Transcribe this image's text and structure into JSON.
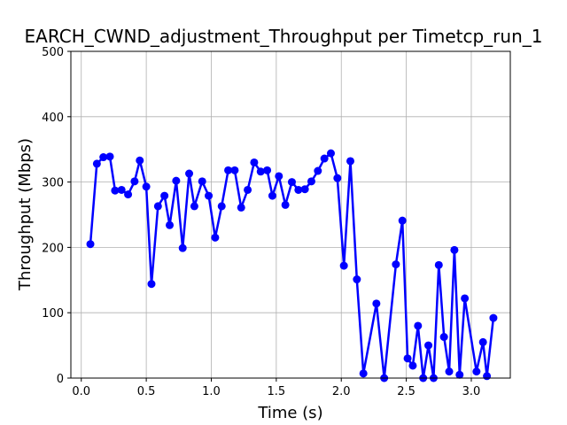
{
  "chart_data": {
    "type": "line",
    "title": "EARCH_CWND_adjustment_Throughput per Timetcp_run_1",
    "xlabel": "Time (s)",
    "ylabel": "Throughput (Mbps)",
    "xlim": [
      -0.08,
      3.3
    ],
    "ylim": [
      0,
      500
    ],
    "xticks": [
      0.0,
      0.5,
      1.0,
      1.5,
      2.0,
      2.5,
      3.0
    ],
    "xtick_labels": [
      "0.0",
      "0.5",
      "1.0",
      "1.5",
      "2.0",
      "2.5",
      "3.0"
    ],
    "yticks": [
      0,
      100,
      200,
      300,
      400,
      500
    ],
    "ytick_labels": [
      "0",
      "100",
      "200",
      "300",
      "400",
      "500"
    ],
    "grid": true,
    "line_color": "#0000ff",
    "series": [
      {
        "x": [
          0.07,
          0.12,
          0.17,
          0.22,
          0.26,
          0.31,
          0.36,
          0.41,
          0.45,
          0.5,
          0.54,
          0.59,
          0.64,
          0.68,
          0.73,
          0.78,
          0.83,
          0.87,
          0.93,
          0.98,
          1.03,
          1.08,
          1.13,
          1.18,
          1.23,
          1.28,
          1.33,
          1.38,
          1.43,
          1.47,
          1.52,
          1.57,
          1.62,
          1.67,
          1.72,
          1.77,
          1.82,
          1.87,
          1.92,
          1.97,
          2.02,
          2.07,
          2.12,
          2.17,
          2.27,
          2.33,
          2.42,
          2.47,
          2.51,
          2.55,
          2.59,
          2.63,
          2.67,
          2.71,
          2.75,
          2.79,
          2.83,
          2.87,
          2.91,
          2.95,
          3.04,
          3.09,
          3.12,
          3.17
        ],
        "y": [
          205,
          328,
          338,
          339,
          287,
          288,
          281,
          301,
          333,
          293,
          144,
          263,
          279,
          234,
          302,
          199,
          313,
          263,
          301,
          279,
          215,
          263,
          318,
          318,
          261,
          288,
          330,
          316,
          318,
          279,
          309,
          265,
          300,
          288,
          289,
          301,
          317,
          336,
          344,
          306,
          172,
          332,
          151,
          7,
          114,
          0,
          174,
          241,
          30,
          19,
          80,
          0,
          50,
          0,
          173,
          63,
          10,
          196,
          5,
          122,
          10,
          55,
          3,
          92
        ]
      }
    ]
  }
}
